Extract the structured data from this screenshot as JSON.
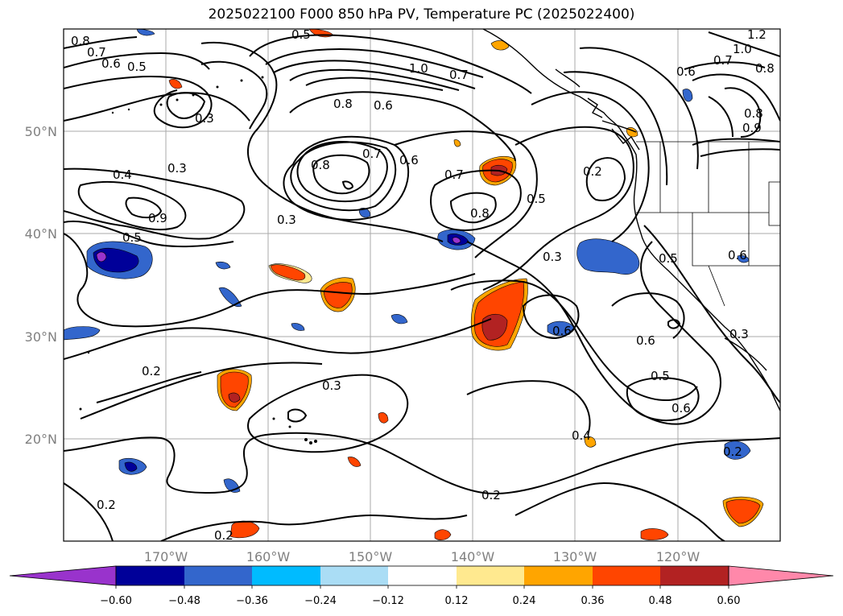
{
  "title": "2025022100 F000 850 hPa PV, Temperature PC (2025022400)",
  "lat_labels": [
    "50°N",
    "40°N",
    "30°N",
    "20°N"
  ],
  "lon_labels": [
    "170°W",
    "160°W",
    "150°W",
    "140°W",
    "130°W",
    "120°W"
  ],
  "contour_labels": [
    "0.8",
    "0.7",
    "0.6",
    "0.5",
    "0.3",
    "0.5",
    "1.0",
    "0.7",
    "0.8",
    "0.6",
    "1.2",
    "1.0",
    "0.7",
    "0.8",
    "0.6",
    "0.8",
    "0.9",
    "0.4",
    "0.3",
    "0.8",
    "0.7",
    "0.6",
    "0.7",
    "0.2",
    "0.9",
    "0.5",
    "0.8",
    "0.5",
    "0.3",
    "0.3",
    "0.5",
    "0.6",
    "0.3",
    "0.2",
    "0.3",
    "0.6",
    "0.6",
    "0.5",
    "0.6",
    "0.4",
    "0.2",
    "0.2",
    "0.2",
    "0.2"
  ],
  "colorbar": {
    "tick_labels": [
      "−0.60",
      "−0.48",
      "−0.36",
      "−0.24",
      "−0.12",
      "0.12",
      "0.24",
      "0.36",
      "0.48",
      "0.60"
    ],
    "colors": [
      "#9933cc",
      "#000099",
      "#3366cc",
      "#00bbff",
      "#aaddf5",
      "#ffffff",
      "#ffe98f",
      "#ffa500",
      "#ff4500",
      "#b22222",
      "#ff88aa"
    ]
  }
}
